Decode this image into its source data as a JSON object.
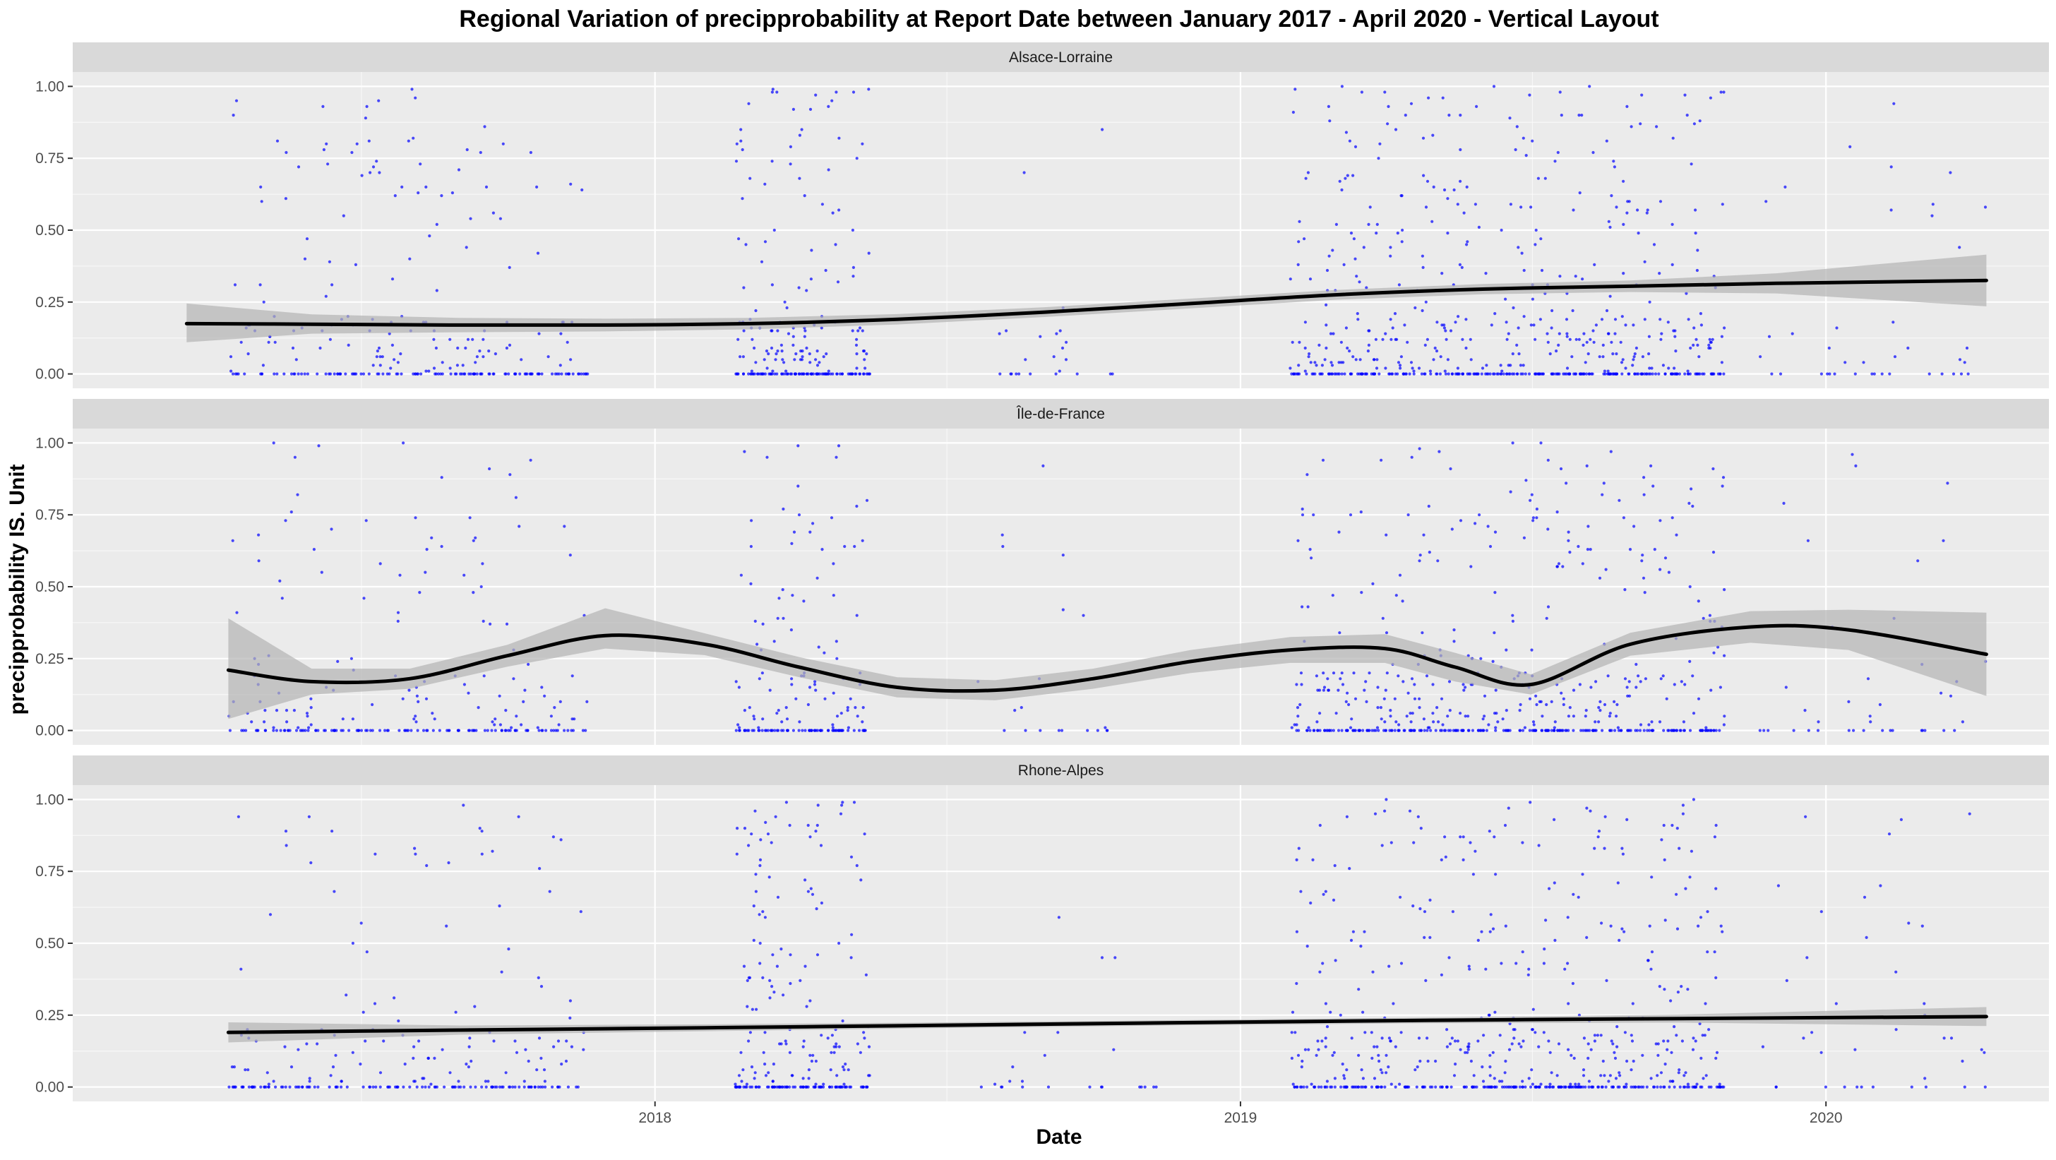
{
  "chart_data": {
    "type": "scatter",
    "title": "Regional Variation of  precipprobability  at Report Date between January 2017 - April 2020 - Vertical Layout",
    "xlabel": "Date",
    "ylabel": "precipprobability  IS. Unit",
    "x_ticks": [
      "2018",
      "2019",
      "2020"
    ],
    "y_ticks": [
      "0.00",
      "0.25",
      "0.50",
      "0.75",
      "1.00"
    ],
    "xlim": [
      "2017-01-03",
      "2020-05-19"
    ],
    "ylim": [
      -0.05,
      1.05
    ],
    "grid": true,
    "point_color": "#0000ff",
    "line_color": "#000000",
    "ribbon_color": "#b3b3b3",
    "panel_bg": "#ebebeb",
    "strip_bg": "#d9d9d9",
    "panels": [
      {
        "label": "Alsace-Lorraine",
        "clusters": [
          {
            "from": "2017-04-10",
            "to": "2017-11-20",
            "n": 260,
            "zero_frac": 0.45
          },
          {
            "from": "2018-02-20",
            "to": "2018-05-15",
            "n": 220,
            "zero_frac": 0.4
          },
          {
            "from": "2018-07-20",
            "to": "2018-10-15",
            "n": 24,
            "zero_frac": 0.5
          },
          {
            "from": "2019-02-01",
            "to": "2019-10-30",
            "n": 600,
            "zero_frac": 0.35
          },
          {
            "from": "2019-11-20",
            "to": "2020-04-10",
            "n": 40,
            "zero_frac": 0.35
          }
        ],
        "smooth": {
          "x": [
            "2017-03-15",
            "2017-06-01",
            "2017-09-01",
            "2017-12-01",
            "2018-03-01",
            "2018-06-01",
            "2018-09-01",
            "2018-12-01",
            "2019-03-01",
            "2019-06-01",
            "2019-09-01",
            "2019-12-01",
            "2020-04-10"
          ],
          "y": [
            0.175,
            0.173,
            0.17,
            0.17,
            0.175,
            0.19,
            0.215,
            0.245,
            0.275,
            0.295,
            0.305,
            0.315,
            0.325
          ],
          "lo": [
            0.11,
            0.14,
            0.145,
            0.148,
            0.155,
            0.172,
            0.198,
            0.228,
            0.258,
            0.277,
            0.285,
            0.28,
            0.235
          ],
          "hi": [
            0.245,
            0.207,
            0.195,
            0.192,
            0.195,
            0.208,
            0.232,
            0.262,
            0.292,
            0.313,
            0.325,
            0.35,
            0.415
          ]
        }
      },
      {
        "label": "Île-de-France",
        "clusters": [
          {
            "from": "2017-04-10",
            "to": "2017-11-20",
            "n": 230,
            "zero_frac": 0.45
          },
          {
            "from": "2018-02-20",
            "to": "2018-05-15",
            "n": 160,
            "zero_frac": 0.45
          },
          {
            "from": "2018-07-20",
            "to": "2018-10-15",
            "n": 20,
            "zero_frac": 0.5
          },
          {
            "from": "2019-02-01",
            "to": "2019-10-30",
            "n": 520,
            "zero_frac": 0.4
          },
          {
            "from": "2019-11-20",
            "to": "2020-04-10",
            "n": 40,
            "zero_frac": 0.4
          }
        ],
        "smooth": {
          "x": [
            "2017-04-10",
            "2017-06-01",
            "2017-08-01",
            "2017-10-01",
            "2017-12-01",
            "2018-02-01",
            "2018-04-01",
            "2018-06-01",
            "2018-08-01",
            "2018-10-01",
            "2018-12-01",
            "2019-02-01",
            "2019-04-01",
            "2019-05-15",
            "2019-07-01",
            "2019-09-01",
            "2019-11-15",
            "2020-01-15",
            "2020-04-10"
          ],
          "y": [
            0.21,
            0.17,
            0.18,
            0.26,
            0.33,
            0.3,
            0.22,
            0.15,
            0.14,
            0.18,
            0.24,
            0.28,
            0.285,
            0.22,
            0.16,
            0.3,
            0.36,
            0.35,
            0.265
          ],
          "lo": [
            0.04,
            0.125,
            0.145,
            0.222,
            0.285,
            0.262,
            0.185,
            0.115,
            0.105,
            0.145,
            0.2,
            0.235,
            0.235,
            0.17,
            0.125,
            0.26,
            0.305,
            0.28,
            0.12
          ],
          "hi": [
            0.39,
            0.215,
            0.215,
            0.298,
            0.425,
            0.338,
            0.255,
            0.185,
            0.175,
            0.215,
            0.28,
            0.325,
            0.335,
            0.27,
            0.195,
            0.34,
            0.415,
            0.42,
            0.41
          ]
        }
      },
      {
        "label": "Rhone-Alpes",
        "clusters": [
          {
            "from": "2017-04-10",
            "to": "2017-11-20",
            "n": 230,
            "zero_frac": 0.45
          },
          {
            "from": "2018-02-20",
            "to": "2018-05-15",
            "n": 220,
            "zero_frac": 0.35
          },
          {
            "from": "2018-07-20",
            "to": "2018-11-15",
            "n": 24,
            "zero_frac": 0.5
          },
          {
            "from": "2019-02-01",
            "to": "2019-10-30",
            "n": 560,
            "zero_frac": 0.35
          },
          {
            "from": "2019-11-20",
            "to": "2020-04-10",
            "n": 40,
            "zero_frac": 0.4
          }
        ],
        "smooth": {
          "x": [
            "2017-04-10",
            "2017-09-01",
            "2018-02-01",
            "2018-07-01",
            "2018-12-01",
            "2019-05-01",
            "2019-10-01",
            "2020-04-10"
          ],
          "y": [
            0.19,
            0.198,
            0.206,
            0.215,
            0.224,
            0.232,
            0.238,
            0.245
          ],
          "lo": [
            0.155,
            0.182,
            0.194,
            0.205,
            0.215,
            0.222,
            0.224,
            0.212
          ],
          "hi": [
            0.225,
            0.214,
            0.218,
            0.225,
            0.233,
            0.242,
            0.252,
            0.278
          ]
        }
      }
    ]
  }
}
